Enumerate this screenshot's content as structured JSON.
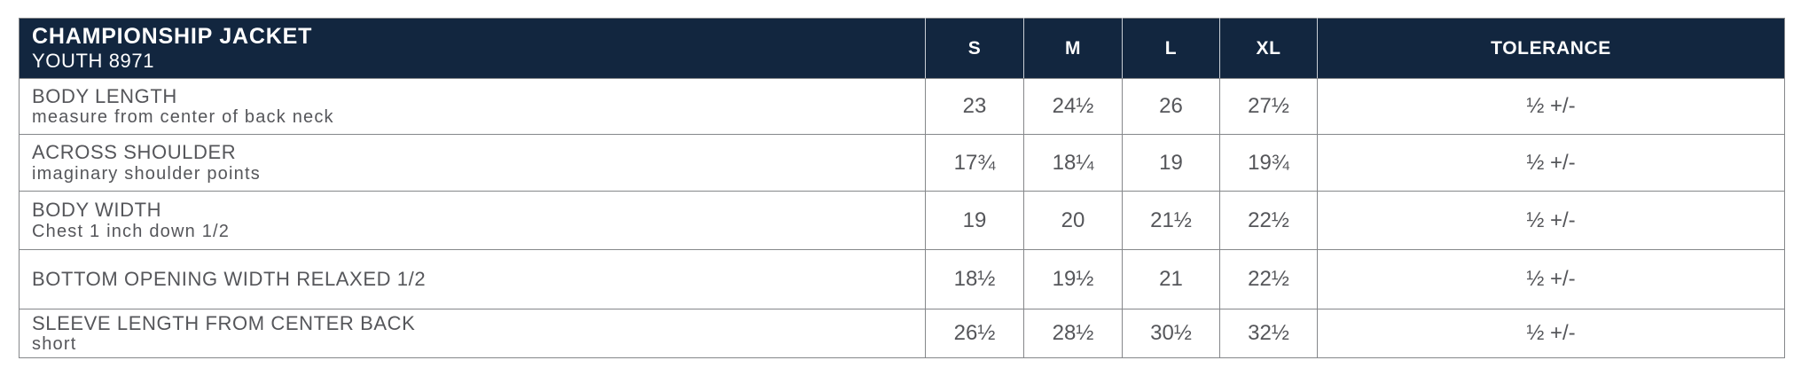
{
  "colors": {
    "header_bg": "#12263f",
    "header_text": "#ffffff",
    "body_text": "#55565a",
    "grid_line": "#85878a",
    "header_divider": "#c9ced5"
  },
  "table": {
    "header": {
      "title": "CHAMPIONSHIP JACKET",
      "subtitle": "YOUTH 8971",
      "size_columns": [
        "S",
        "M",
        "L",
        "XL"
      ],
      "tolerance_label": "TOLERANCE"
    },
    "rows": [
      {
        "name": "BODY LENGTH",
        "description": "measure from center of back neck",
        "values": [
          "23",
          "24½",
          "26",
          "27½"
        ],
        "tolerance": "½ +/-"
      },
      {
        "name": "ACROSS SHOULDER",
        "description": "imaginary shoulder points",
        "values": [
          "17¾",
          "18¼",
          "19",
          "19¾"
        ],
        "tolerance": "½ +/-"
      },
      {
        "name": "BODY WIDTH",
        "description": "Chest 1 inch down 1/2",
        "values": [
          "19",
          "20",
          "21½",
          "22½"
        ],
        "tolerance": "½ +/-"
      },
      {
        "name": "BOTTOM OPENING WIDTH RELAXED 1/2",
        "description": "",
        "values": [
          "18½",
          "19½",
          "21",
          "22½"
        ],
        "tolerance": "½ +/-"
      },
      {
        "name": "SLEEVE LENGTH FROM CENTER BACK",
        "description": "short",
        "values": [
          "26½",
          "28½",
          "30½",
          "32½"
        ],
        "tolerance": "½ +/-"
      }
    ]
  }
}
